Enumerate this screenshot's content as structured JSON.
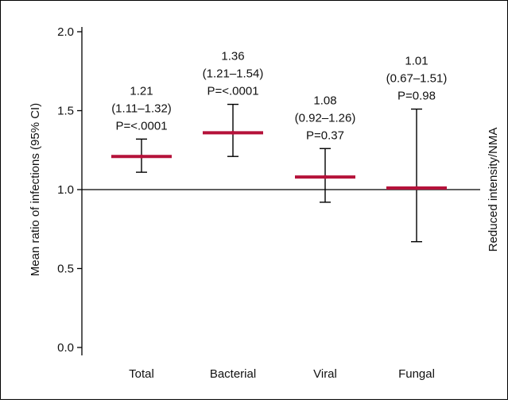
{
  "chart_data": {
    "type": "errorbar",
    "title": "",
    "ylabel": "Mean ratio of infections (95% CI)",
    "right_label": "Reduced intensity/NMA",
    "ylim": [
      0.0,
      2.0
    ],
    "yticks": [
      0.0,
      0.5,
      1.0,
      1.5,
      2.0
    ],
    "ytick_labels": [
      "0.0",
      "0.5",
      "1.0",
      "1.5",
      "2.0"
    ],
    "reference_line": 1.0,
    "categories": [
      "Total",
      "Bacterial",
      "Viral",
      "Fungal"
    ],
    "values": [
      1.21,
      1.36,
      1.08,
      1.01
    ],
    "ci_lower": [
      1.11,
      1.21,
      0.92,
      0.67
    ],
    "ci_upper": [
      1.32,
      1.54,
      1.26,
      1.51
    ],
    "annotations": [
      {
        "estimate": "1.21",
        "ci": "(1.11–1.32)",
        "p": "P=<.0001"
      },
      {
        "estimate": "1.36",
        "ci": "(1.21–1.54)",
        "p": "P=<.0001"
      },
      {
        "estimate": "1.08",
        "ci": "(0.92–1.26)",
        "p": "P=0.37"
      },
      {
        "estimate": "1.01",
        "ci": "(0.67–1.51)",
        "p": "P=0.98"
      }
    ],
    "colors": {
      "estimate": "#b5123a",
      "whisker": "#000000",
      "axis": "#000000"
    }
  }
}
